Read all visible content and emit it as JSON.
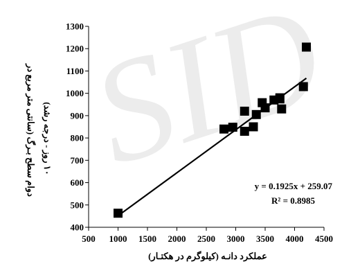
{
  "watermark": {
    "text": "SID",
    "color": "#c8c8c8"
  },
  "chart_data": {
    "type": "scatter",
    "title": "",
    "xlabel": "عملکرد دانـه (کیلوگرم در هکتـار)",
    "ylabel_line1": "دوام سطح بـرگ (سانتی متر مربع در",
    "ylabel_line2": "۱۰ روز - درجه رشد)",
    "xlim": [
      500,
      4500
    ],
    "ylim": [
      400,
      1300
    ],
    "x_ticks": [
      "500",
      "1000",
      "1500",
      "2000",
      "2500",
      "3000",
      "3500",
      "4000",
      "4500"
    ],
    "y_ticks": [
      "400",
      "500",
      "600",
      "700",
      "800",
      "900",
      "1000",
      "1100",
      "1200",
      "1300"
    ],
    "grid": false,
    "legend": "none",
    "marker": "square",
    "marker_color": "#000000",
    "points": [
      {
        "x": 1000,
        "y": 463
      },
      {
        "x": 2800,
        "y": 840
      },
      {
        "x": 2950,
        "y": 848
      },
      {
        "x": 3150,
        "y": 830
      },
      {
        "x": 3150,
        "y": 920
      },
      {
        "x": 3300,
        "y": 850
      },
      {
        "x": 3350,
        "y": 905
      },
      {
        "x": 3450,
        "y": 958
      },
      {
        "x": 3500,
        "y": 935
      },
      {
        "x": 3650,
        "y": 970
      },
      {
        "x": 3750,
        "y": 980
      },
      {
        "x": 3750,
        "y": 975
      },
      {
        "x": 3780,
        "y": 930
      },
      {
        "x": 4150,
        "y": 1030
      },
      {
        "x": 4200,
        "y": 1207
      }
    ],
    "trendline": {
      "slope": 0.1925,
      "intercept": 259.07,
      "x_range": [
        1000,
        4200
      ],
      "color": "#000000",
      "equation": "y = 0.1925x + 259.07",
      "r2": "R² = 0.8985"
    }
  }
}
